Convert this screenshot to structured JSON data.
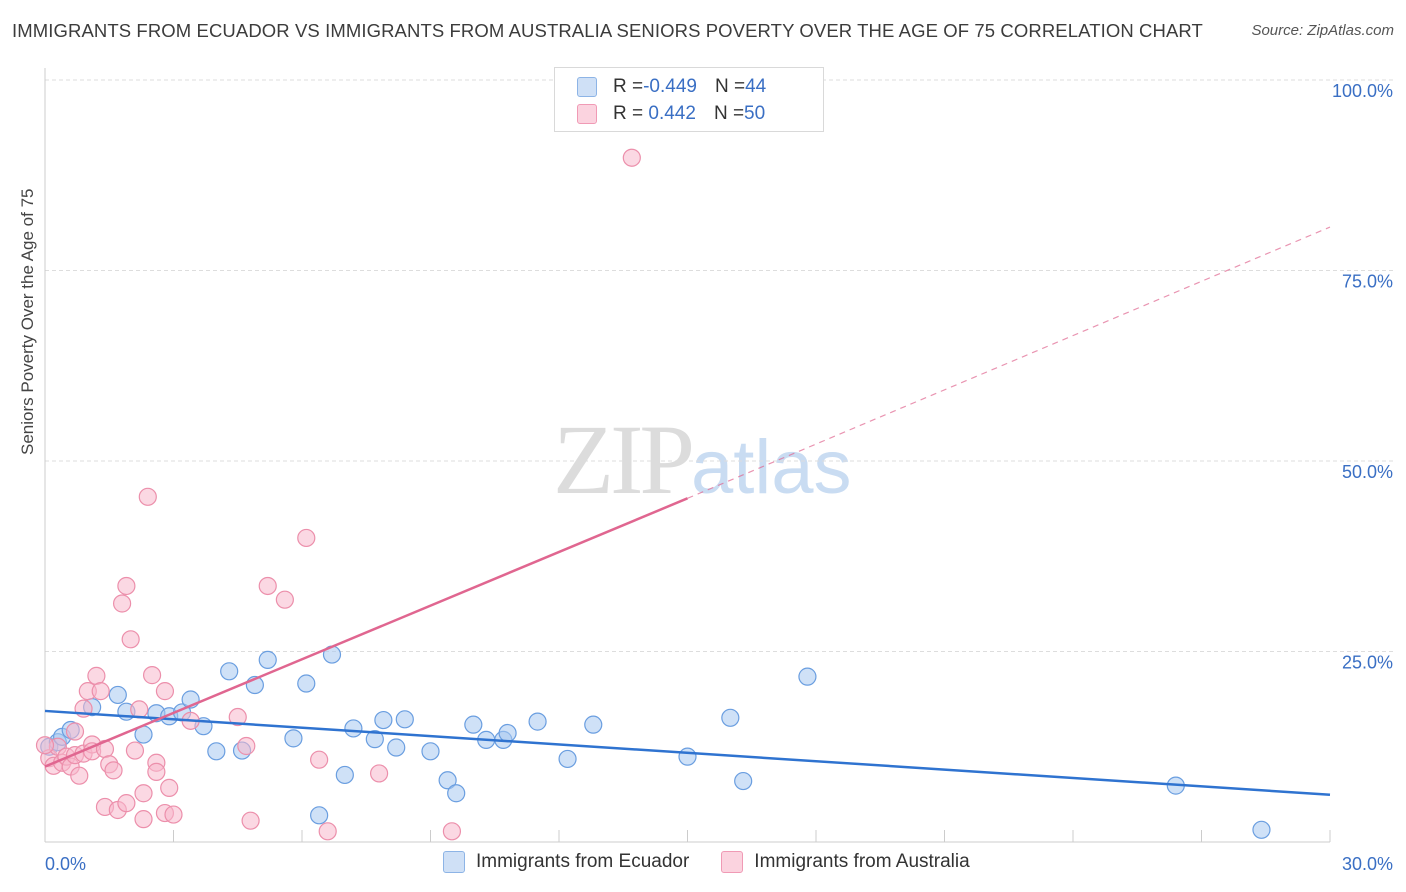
{
  "header": {
    "title": "IMMIGRANTS FROM ECUADOR VS IMMIGRANTS FROM AUSTRALIA SENIORS POVERTY OVER THE AGE OF 75 CORRELATION CHART",
    "source": "Source: ZipAtlas.com"
  },
  "watermark": {
    "zip": "ZIP",
    "atlas": "atlas"
  },
  "legend": {
    "rows": [
      {
        "r_label": "R = ",
        "r_value": "-0.449",
        "n_label": "N = ",
        "n_value": "44",
        "color": "#a8c8f0"
      },
      {
        "r_label": "R = ",
        "r_value": " 0.442",
        "n_label": "N = ",
        "n_value": "50",
        "color": "#f7b8cc"
      }
    ]
  },
  "chart_data": {
    "type": "scatter",
    "title": "IMMIGRANTS FROM ECUADOR VS IMMIGRANTS FROM AUSTRALIA SENIORS POVERTY OVER THE AGE OF 75 CORRELATION CHART",
    "xlabel": "",
    "ylabel": "Seniors Poverty Over the Age of 75",
    "xlim": [
      0,
      30
    ],
    "ylim": [
      0,
      100
    ],
    "x_tick_labels": [
      "0.0%",
      "30.0%"
    ],
    "y_tick_labels": [
      "100.0%",
      "75.0%",
      "50.0%",
      "25.0%"
    ],
    "y_ticks": [
      100,
      75,
      50,
      25
    ],
    "grid": true,
    "legend_placement": "top-center",
    "series": [
      {
        "name": "Immigrants from Ecuador",
        "color": "#a8c8f0",
        "edge": "#6a9ee0",
        "line_color": "#2f73d0",
        "trend": {
          "x": [
            0,
            30
          ],
          "y": [
            17.2,
            6.2
          ],
          "dashed_after": null
        },
        "points": [
          [
            0.1,
            12.5
          ],
          [
            0.3,
            13.1
          ],
          [
            0.4,
            13.8
          ],
          [
            0.6,
            14.7
          ],
          [
            1.1,
            17.7
          ],
          [
            1.7,
            19.3
          ],
          [
            1.9,
            17.1
          ],
          [
            2.3,
            14.1
          ],
          [
            2.6,
            16.9
          ],
          [
            2.9,
            16.5
          ],
          [
            3.2,
            17.0
          ],
          [
            3.4,
            18.7
          ],
          [
            3.7,
            15.2
          ],
          [
            4.0,
            11.9
          ],
          [
            4.3,
            22.4
          ],
          [
            4.6,
            12.0
          ],
          [
            4.9,
            20.6
          ],
          [
            5.2,
            23.9
          ],
          [
            5.8,
            13.6
          ],
          [
            6.1,
            20.8
          ],
          [
            6.4,
            3.5
          ],
          [
            6.7,
            24.6
          ],
          [
            7.0,
            8.8
          ],
          [
            7.2,
            14.9
          ],
          [
            7.7,
            13.5
          ],
          [
            7.9,
            16.0
          ],
          [
            8.2,
            12.4
          ],
          [
            8.4,
            16.1
          ],
          [
            9.0,
            11.9
          ],
          [
            9.4,
            8.1
          ],
          [
            9.6,
            6.4
          ],
          [
            10.0,
            15.4
          ],
          [
            10.3,
            13.4
          ],
          [
            10.7,
            13.4
          ],
          [
            10.8,
            14.3
          ],
          [
            11.5,
            15.8
          ],
          [
            12.2,
            10.9
          ],
          [
            12.8,
            15.4
          ],
          [
            15.0,
            11.2
          ],
          [
            16.0,
            16.3
          ],
          [
            16.3,
            8.0
          ],
          [
            17.8,
            21.7
          ],
          [
            26.4,
            7.4
          ],
          [
            28.4,
            1.6
          ]
        ]
      },
      {
        "name": "Immigrants from Australia",
        "color": "#f7b8cc",
        "edge": "#ec8fab",
        "line_color": "#e06690",
        "trend": {
          "x": [
            0,
            15
          ],
          "y": [
            9.9,
            45.1
          ],
          "dashed_to": [
            30,
            80.7
          ]
        },
        "points": [
          [
            0.1,
            11.0
          ],
          [
            0.2,
            10.0
          ],
          [
            0.3,
            12.5
          ],
          [
            0.4,
            10.4
          ],
          [
            0.5,
            11.2
          ],
          [
            0.6,
            9.9
          ],
          [
            0.7,
            11.4
          ],
          [
            0.7,
            14.5
          ],
          [
            0.8,
            8.7
          ],
          [
            0.9,
            11.6
          ],
          [
            0.9,
            17.5
          ],
          [
            1.0,
            19.8
          ],
          [
            1.1,
            12.8
          ],
          [
            1.1,
            11.9
          ],
          [
            1.2,
            21.8
          ],
          [
            1.3,
            19.8
          ],
          [
            1.4,
            12.2
          ],
          [
            1.4,
            4.6
          ],
          [
            1.5,
            10.2
          ],
          [
            1.6,
            9.4
          ],
          [
            1.7,
            4.2
          ],
          [
            1.8,
            31.3
          ],
          [
            1.9,
            33.6
          ],
          [
            1.9,
            5.1
          ],
          [
            2.0,
            26.6
          ],
          [
            2.1,
            12.0
          ],
          [
            2.2,
            17.4
          ],
          [
            2.3,
            6.4
          ],
          [
            2.6,
            10.4
          ],
          [
            2.8,
            19.8
          ],
          [
            2.3,
            3.0
          ],
          [
            2.4,
            45.3
          ],
          [
            2.5,
            21.9
          ],
          [
            2.6,
            9.2
          ],
          [
            2.8,
            3.8
          ],
          [
            2.9,
            7.1
          ],
          [
            3.0,
            3.6
          ],
          [
            3.4,
            15.9
          ],
          [
            4.5,
            16.4
          ],
          [
            4.7,
            12.6
          ],
          [
            4.8,
            2.8
          ],
          [
            5.2,
            33.6
          ],
          [
            5.6,
            31.8
          ],
          [
            6.1,
            39.9
          ],
          [
            6.4,
            10.8
          ],
          [
            6.6,
            1.4
          ],
          [
            7.8,
            9.0
          ],
          [
            9.5,
            1.4
          ],
          [
            13.7,
            89.8
          ],
          [
            0.0,
            12.7
          ]
        ]
      }
    ]
  }
}
